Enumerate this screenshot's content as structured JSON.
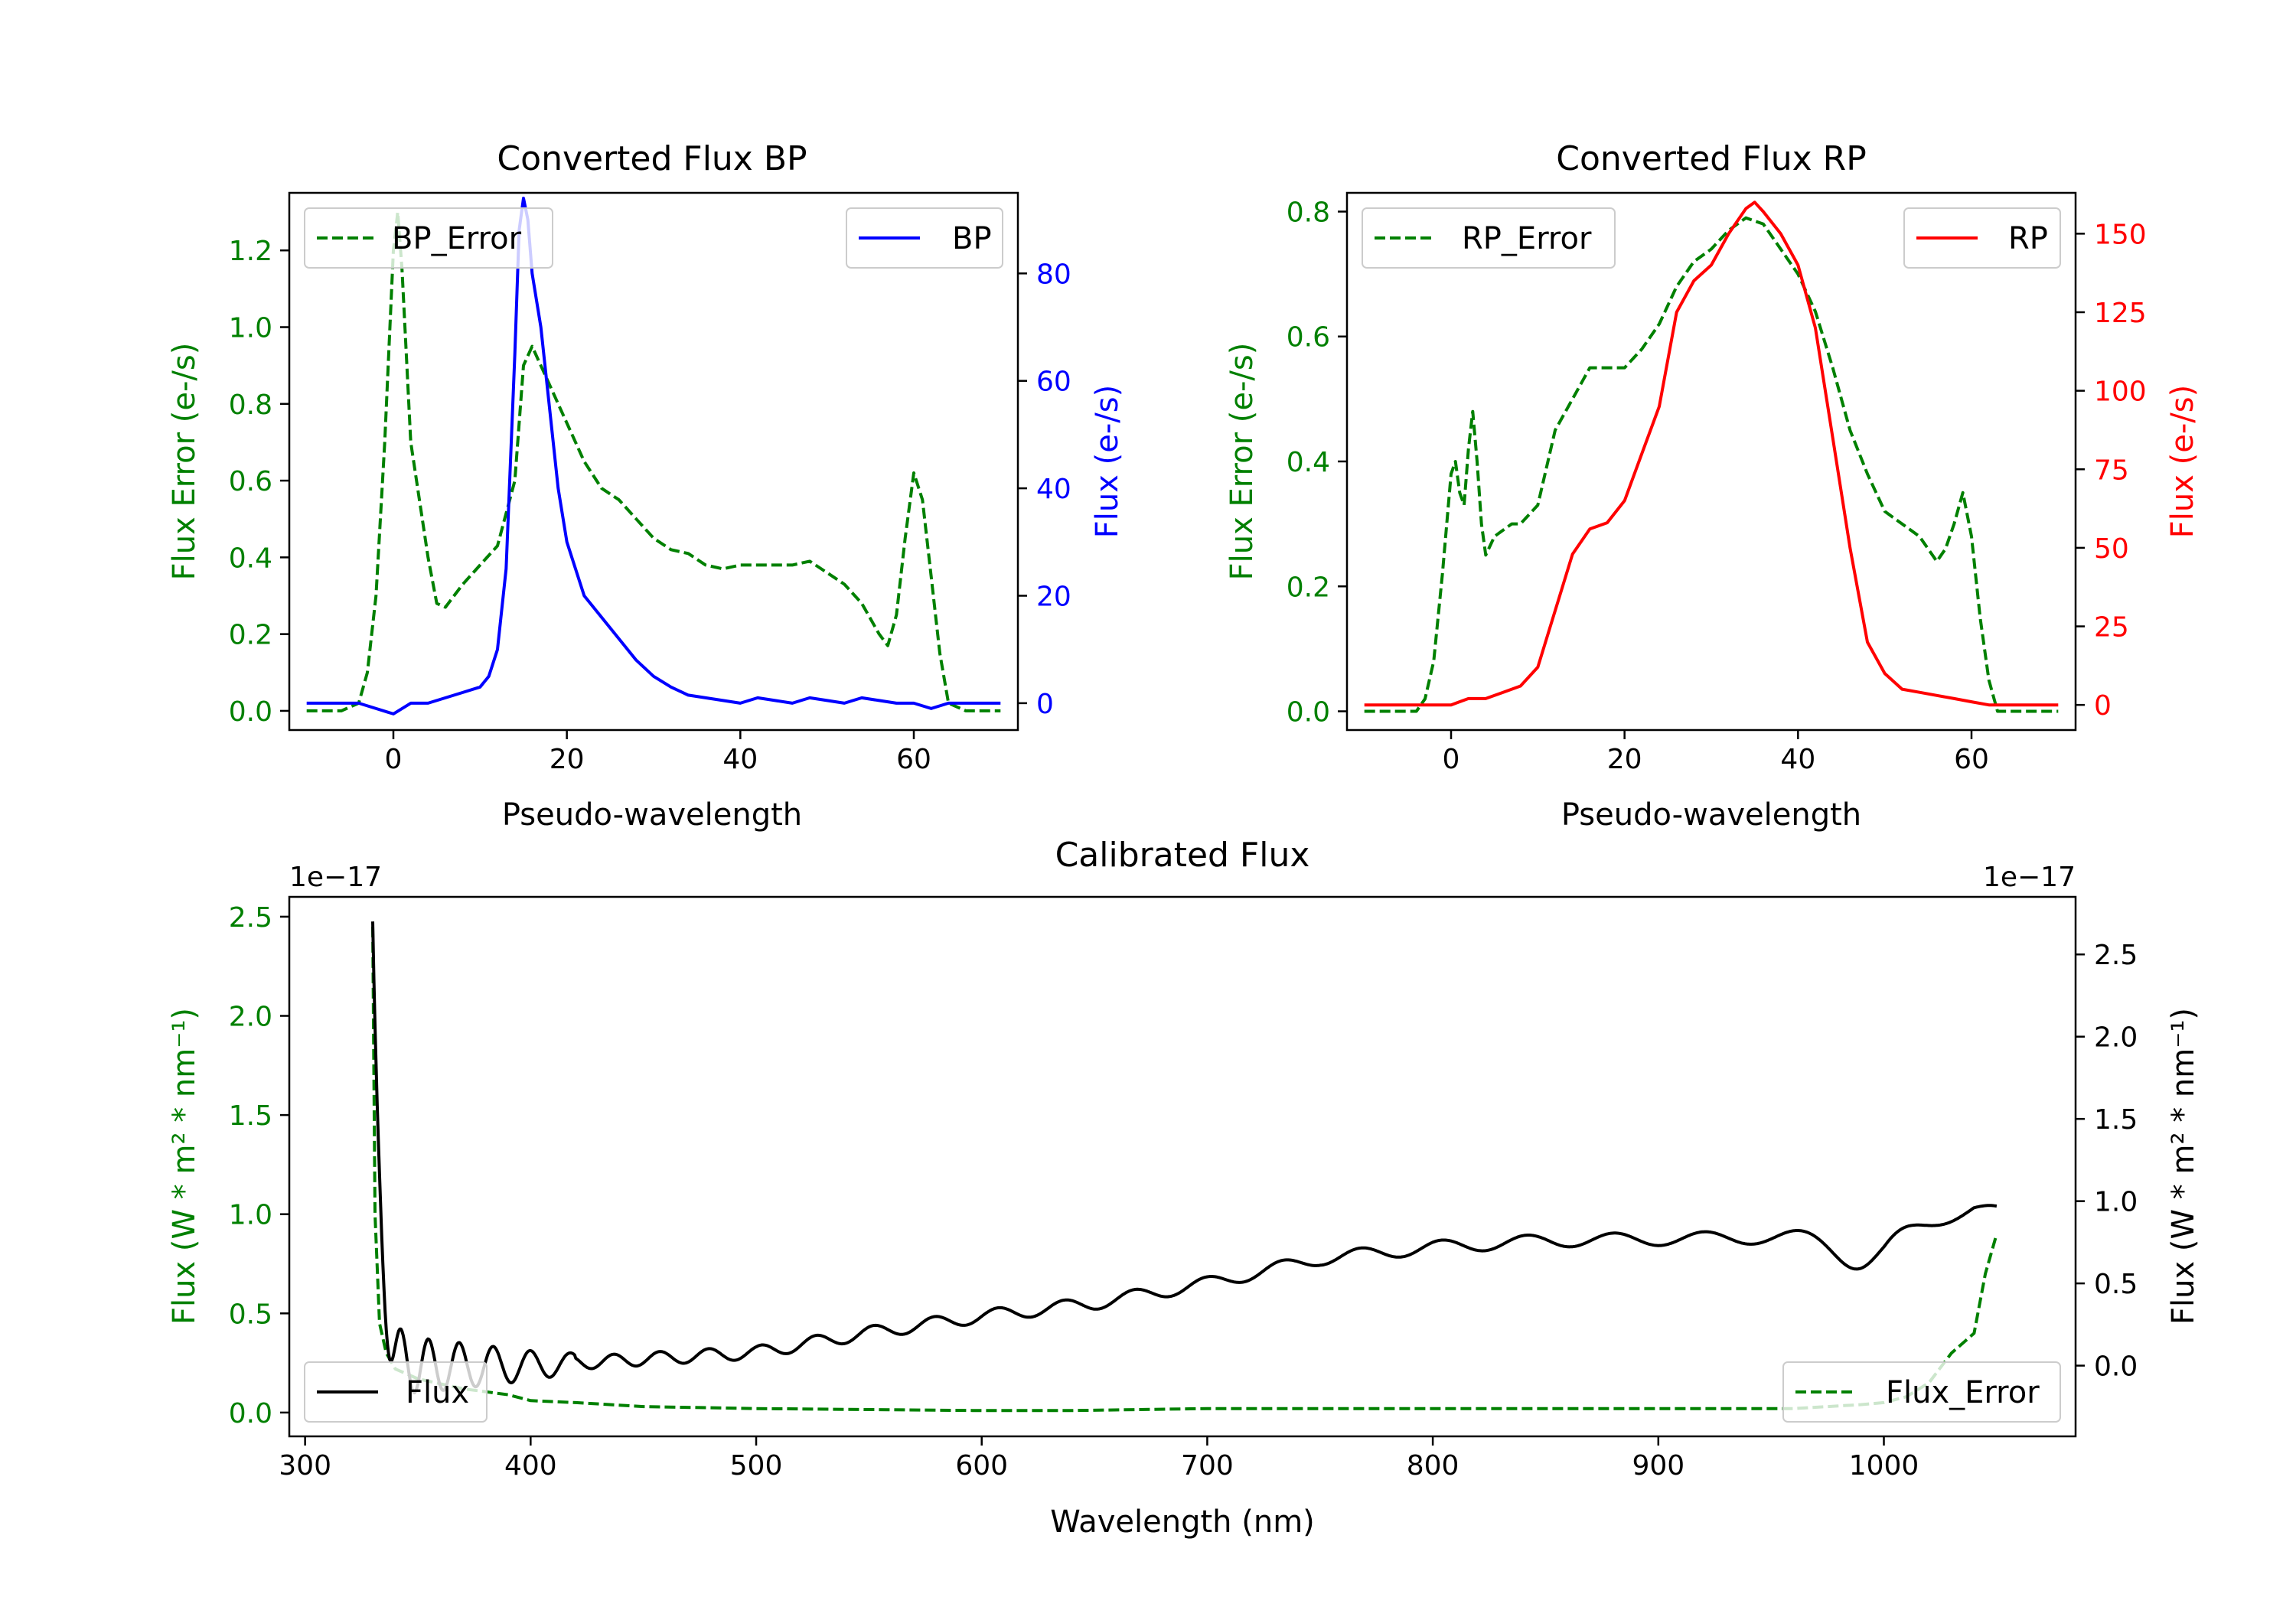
{
  "colors": {
    "error": "#008000",
    "bp": "#0000ff",
    "rp": "#ff0000",
    "flux": "#000000"
  },
  "chart_data": [
    {
      "type": "line",
      "title": "Converted Flux BP",
      "xlabel": "Pseudo-wavelength",
      "xlim": [
        -12,
        72
      ],
      "xticks": [
        "0",
        "20",
        "40",
        "60"
      ],
      "left_axis": {
        "label": "Flux Error (e-/s)",
        "lim": [
          -0.05,
          1.35
        ],
        "ticks": [
          "0.0",
          "0.2",
          "0.4",
          "0.6",
          "0.8",
          "1.0",
          "1.2"
        ]
      },
      "right_axis": {
        "label": "Flux (e-/s)",
        "lim": [
          -5,
          95
        ],
        "ticks": [
          "0",
          "20",
          "40",
          "60",
          "80"
        ]
      },
      "series": [
        {
          "name": "BP_Error",
          "axis": "left",
          "style": "dashed",
          "color": "#008000",
          "x": [
            -10,
            -6,
            -4,
            -3,
            -2,
            -1,
            0,
            0.5,
            1,
            2,
            3,
            4,
            5,
            6,
            7,
            8,
            10,
            12,
            14,
            15,
            16,
            18,
            20,
            22,
            24,
            26,
            28,
            30,
            32,
            34,
            36,
            38,
            40,
            42,
            44,
            46,
            48,
            50,
            52,
            54,
            56,
            57,
            58,
            59,
            60,
            61,
            62,
            63,
            64,
            66,
            70
          ],
          "y": [
            0.0,
            0.0,
            0.02,
            0.1,
            0.3,
            0.7,
            1.2,
            1.3,
            1.15,
            0.7,
            0.55,
            0.4,
            0.28,
            0.27,
            0.3,
            0.33,
            0.38,
            0.43,
            0.6,
            0.9,
            0.95,
            0.85,
            0.75,
            0.65,
            0.58,
            0.55,
            0.5,
            0.45,
            0.42,
            0.41,
            0.38,
            0.37,
            0.38,
            0.38,
            0.38,
            0.38,
            0.39,
            0.36,
            0.33,
            0.28,
            0.2,
            0.17,
            0.25,
            0.45,
            0.62,
            0.55,
            0.35,
            0.15,
            0.02,
            0.0,
            0.0
          ]
        },
        {
          "name": "BP",
          "axis": "right",
          "style": "solid",
          "color": "#0000ff",
          "x": [
            -10,
            -4,
            -2,
            0,
            2,
            4,
            6,
            8,
            10,
            11,
            12,
            13,
            14,
            14.5,
            15,
            15.5,
            16,
            17,
            18,
            19,
            20,
            21,
            22,
            24,
            26,
            28,
            30,
            32,
            34,
            36,
            38,
            40,
            42,
            44,
            46,
            48,
            50,
            52,
            54,
            56,
            58,
            60,
            62,
            64,
            66,
            70
          ],
          "y": [
            0,
            0,
            -1,
            -2,
            0,
            0,
            1,
            2,
            3,
            5,
            10,
            25,
            65,
            88,
            94,
            90,
            80,
            70,
            55,
            40,
            30,
            25,
            20,
            16,
            12,
            8,
            5,
            3,
            1.5,
            1,
            0.5,
            0,
            1,
            0.5,
            0,
            1,
            0.5,
            0,
            1,
            0.5,
            0,
            0,
            -1,
            0,
            0,
            0
          ]
        }
      ],
      "legends": {
        "left": "BP_Error",
        "right": "BP"
      }
    },
    {
      "type": "line",
      "title": "Converted Flux RP",
      "xlabel": "Pseudo-wavelength",
      "xlim": [
        -12,
        72
      ],
      "xticks": [
        "0",
        "20",
        "40",
        "60"
      ],
      "left_axis": {
        "label": "Flux Error (e-/s)",
        "lim": [
          -0.03,
          0.83
        ],
        "ticks": [
          "0.0",
          "0.2",
          "0.4",
          "0.6",
          "0.8"
        ]
      },
      "right_axis": {
        "label": "Flux (e-/s)",
        "lim": [
          -8,
          163
        ],
        "ticks": [
          "0",
          "25",
          "50",
          "75",
          "100",
          "125",
          "150"
        ]
      },
      "series": [
        {
          "name": "RP_Error",
          "axis": "left",
          "style": "dashed",
          "color": "#008000",
          "x": [
            -10,
            -4,
            -3,
            -2,
            -1,
            0,
            0.5,
            1,
            1.5,
            2,
            2.5,
            3,
            3.5,
            4,
            5,
            6,
            7,
            8,
            10,
            12,
            14,
            16,
            18,
            20,
            22,
            24,
            26,
            28,
            30,
            32,
            34,
            36,
            38,
            40,
            42,
            44,
            46,
            48,
            50,
            52,
            54,
            56,
            57,
            58,
            59,
            60,
            61,
            62,
            63,
            64,
            66,
            70
          ],
          "y": [
            0.0,
            0.0,
            0.02,
            0.08,
            0.22,
            0.38,
            0.4,
            0.35,
            0.33,
            0.42,
            0.48,
            0.4,
            0.3,
            0.25,
            0.28,
            0.29,
            0.3,
            0.3,
            0.33,
            0.45,
            0.5,
            0.55,
            0.55,
            0.55,
            0.58,
            0.62,
            0.68,
            0.72,
            0.74,
            0.77,
            0.79,
            0.78,
            0.74,
            0.7,
            0.64,
            0.55,
            0.45,
            0.38,
            0.32,
            0.3,
            0.28,
            0.24,
            0.26,
            0.3,
            0.35,
            0.28,
            0.15,
            0.05,
            0.0,
            0.0,
            0.0,
            0.0
          ]
        },
        {
          "name": "RP",
          "axis": "right",
          "style": "solid",
          "color": "#ff0000",
          "x": [
            -10,
            -4,
            0,
            2,
            4,
            6,
            8,
            10,
            12,
            14,
            16,
            18,
            20,
            22,
            24,
            26,
            28,
            30,
            32,
            34,
            35,
            36,
            38,
            40,
            42,
            44,
            46,
            48,
            50,
            52,
            54,
            56,
            58,
            60,
            62,
            64,
            66,
            70
          ],
          "y": [
            0,
            0,
            0,
            2,
            2,
            4,
            6,
            12,
            30,
            48,
            56,
            58,
            65,
            80,
            95,
            125,
            135,
            140,
            150,
            158,
            160,
            157,
            150,
            140,
            120,
            85,
            50,
            20,
            10,
            5,
            4,
            3,
            2,
            1,
            0,
            0,
            0,
            0
          ]
        }
      ],
      "legends": {
        "left": "RP_Error",
        "right": "RP"
      }
    },
    {
      "type": "line",
      "title": "Calibrated Flux",
      "xlabel": "Wavelength (nm)",
      "xlim": [
        293,
        1085
      ],
      "xticks": [
        "300",
        "400",
        "500",
        "600",
        "700",
        "800",
        "900",
        "1000"
      ],
      "left_axis": {
        "label": "Flux (W * m² * nm⁻¹)",
        "lim": [
          -0.12,
          2.6
        ],
        "ticks": [
          "0.0",
          "0.5",
          "1.0",
          "1.5",
          "2.0",
          "2.5"
        ],
        "offset": "1e−17"
      },
      "right_axis": {
        "label": "Flux (W * m² * nm⁻¹)",
        "lim": [
          -0.43,
          2.85
        ],
        "ticks": [
          "0.0",
          "0.5",
          "1.0",
          "1.5",
          "2.0",
          "2.5"
        ],
        "offset": "1e−17"
      },
      "series": [
        {
          "name": "Flux_Error",
          "axis": "left",
          "style": "dashed",
          "color": "#008000",
          "x": [
            330,
            331,
            333,
            336,
            340,
            350,
            370,
            390,
            400,
            420,
            450,
            500,
            600,
            640,
            700,
            800,
            900,
            960,
            990,
            1000,
            1010,
            1020,
            1030,
            1040,
            1045,
            1050
          ],
          "y": [
            2.45,
            1.0,
            0.45,
            0.3,
            0.22,
            0.17,
            0.12,
            0.09,
            0.06,
            0.05,
            0.03,
            0.02,
            0.01,
            0.01,
            0.02,
            0.02,
            0.02,
            0.02,
            0.04,
            0.05,
            0.08,
            0.15,
            0.3,
            0.4,
            0.7,
            0.9
          ]
        },
        {
          "name": "Flux",
          "axis": "right",
          "style": "solid",
          "color": "#000000",
          "x_range": [
            330,
            1050
          ],
          "baseline": {
            "x": [
              330,
              400,
              500,
              550,
              600,
              650,
              700,
              750,
              800,
              850,
              900,
              950,
              1000,
              1040,
              1050
            ],
            "y": [
              0.0,
              0.0,
              0.08,
              0.2,
              0.3,
              0.38,
              0.5,
              0.65,
              0.72,
              0.76,
              0.77,
              0.78,
              0.8,
              0.95,
              0.93
            ]
          },
          "spike": {
            "peak": 2.7,
            "width_nm": 3
          },
          "oscillation": {
            "amplitude_start": 0.2,
            "amplitude_end": 0.04,
            "decay_end_nm": 420,
            "period_start_nm": 8,
            "period_end_nm": 45
          },
          "dip": {
            "x": 990,
            "depth": 0.18,
            "width_nm": 14
          }
        }
      ],
      "legends": {
        "left": "Flux",
        "right": "Flux_Error"
      }
    }
  ]
}
